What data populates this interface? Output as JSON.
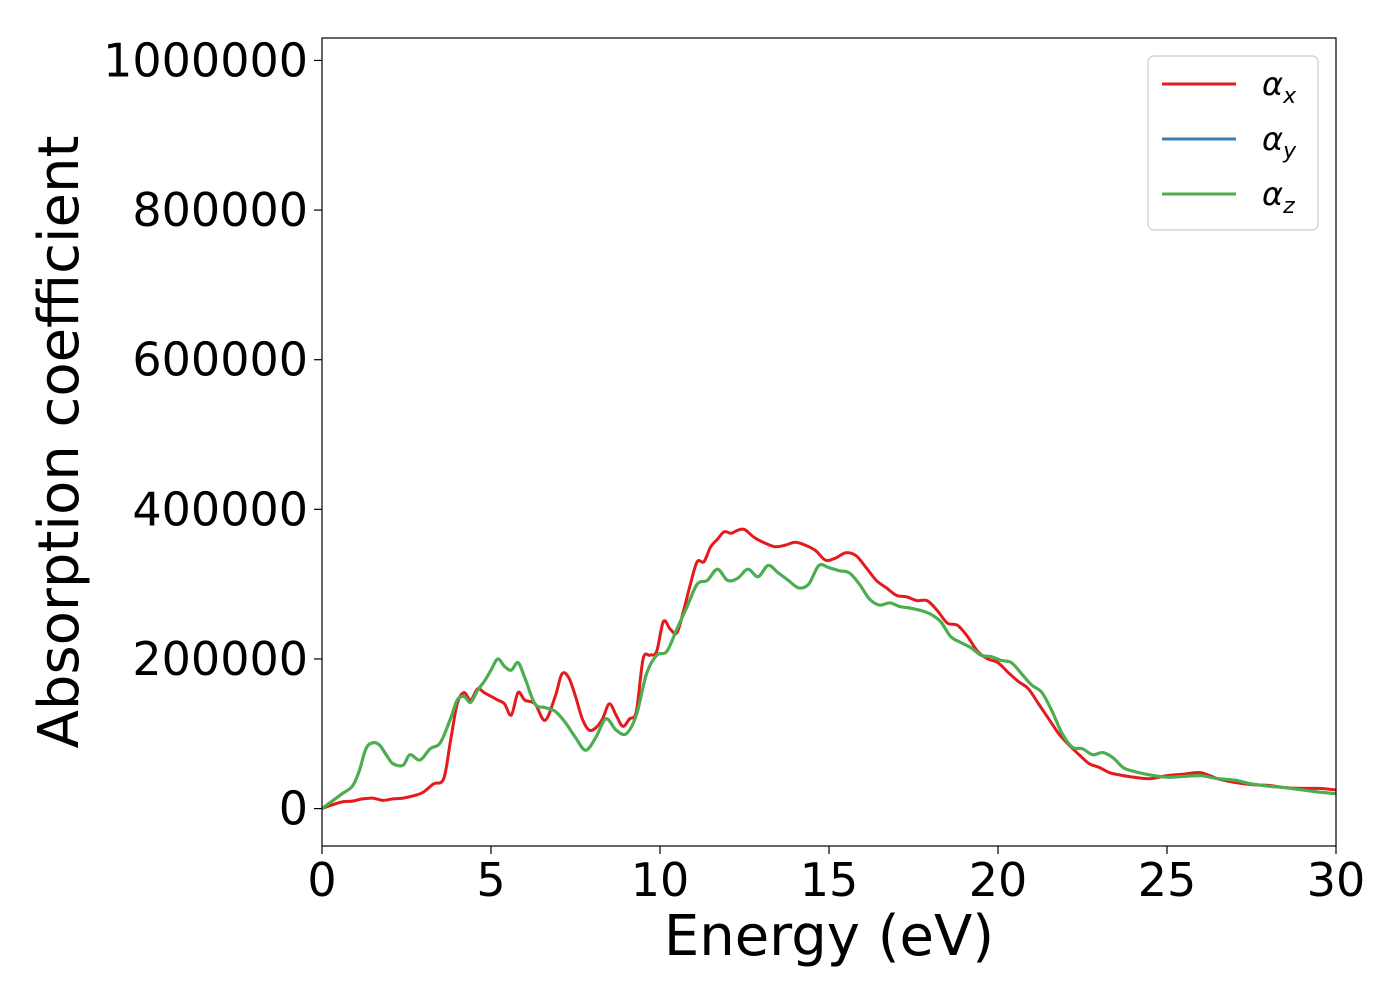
{
  "chart_data": {
    "type": "line",
    "title": "",
    "xlabel": "Energy (eV)",
    "ylabel": "Absorption coefficient",
    "xlim": [
      0,
      30
    ],
    "ylim": [
      -50000,
      1030000
    ],
    "xticks": [
      0,
      5,
      10,
      15,
      20,
      25,
      30
    ],
    "yticks": [
      0,
      200000,
      400000,
      600000,
      800000,
      1000000
    ],
    "grid": false,
    "legend_position": "top-right",
    "series": [
      {
        "name": "α",
        "subscript": "x",
        "color": "#e41a1c",
        "x": [
          0,
          0.3,
          0.6,
          0.9,
          1.2,
          1.5,
          1.8,
          2.1,
          2.4,
          2.7,
          3.0,
          3.3,
          3.6,
          3.8,
          4.0,
          4.2,
          4.4,
          4.6,
          4.8,
          5.0,
          5.2,
          5.4,
          5.6,
          5.8,
          6.0,
          6.3,
          6.6,
          6.9,
          7.1,
          7.3,
          7.5,
          7.7,
          7.9,
          8.1,
          8.3,
          8.5,
          8.7,
          8.9,
          9.1,
          9.3,
          9.5,
          9.7,
          9.9,
          10.1,
          10.3,
          10.5,
          10.7,
          10.9,
          11.1,
          11.3,
          11.5,
          11.7,
          11.9,
          12.1,
          12.3,
          12.5,
          12.8,
          13.1,
          13.4,
          13.7,
          14.0,
          14.3,
          14.6,
          14.9,
          15.2,
          15.5,
          15.8,
          16.1,
          16.4,
          16.7,
          17.0,
          17.3,
          17.6,
          17.9,
          18.2,
          18.5,
          18.8,
          19.1,
          19.4,
          19.7,
          20.0,
          20.3,
          20.6,
          20.9,
          21.2,
          21.5,
          21.8,
          22.1,
          22.4,
          22.7,
          23.0,
          23.3,
          23.6,
          24.0,
          24.5,
          25.0,
          25.5,
          26.0,
          26.5,
          27.0,
          27.5,
          28.0,
          28.5,
          29.0,
          29.5,
          30.0
        ],
        "y": [
          0,
          5000,
          9000,
          10000,
          13000,
          14000,
          11000,
          13000,
          14000,
          17000,
          22000,
          33000,
          40000,
          90000,
          140000,
          155000,
          145000,
          160000,
          155000,
          150000,
          145000,
          140000,
          125000,
          155000,
          145000,
          140000,
          118000,
          150000,
          180000,
          175000,
          150000,
          120000,
          105000,
          108000,
          120000,
          140000,
          125000,
          110000,
          120000,
          130000,
          200000,
          205000,
          210000,
          250000,
          240000,
          235000,
          265000,
          300000,
          330000,
          330000,
          350000,
          360000,
          370000,
          368000,
          372000,
          373000,
          362000,
          355000,
          350000,
          352000,
          356000,
          352000,
          345000,
          332000,
          335000,
          342000,
          338000,
          322000,
          305000,
          295000,
          285000,
          283000,
          278000,
          278000,
          265000,
          248000,
          245000,
          230000,
          210000,
          200000,
          195000,
          182000,
          170000,
          160000,
          140000,
          120000,
          100000,
          85000,
          72000,
          60000,
          55000,
          48000,
          45000,
          42000,
          40000,
          44000,
          46000,
          48000,
          40000,
          35000,
          32000,
          31000,
          28000,
          27000,
          27000,
          25000
        ]
      },
      {
        "name": "α",
        "subscript": "y",
        "color": "#377eb8",
        "x": [
          0,
          0.3,
          0.6,
          0.9,
          1.1,
          1.3,
          1.5,
          1.7,
          1.9,
          2.1,
          2.4,
          2.6,
          2.9,
          3.2,
          3.5,
          3.8,
          4.0,
          4.2,
          4.4,
          4.6,
          4.8,
          5.0,
          5.2,
          5.4,
          5.6,
          5.8,
          6.0,
          6.3,
          6.6,
          6.9,
          7.2,
          7.5,
          7.8,
          8.1,
          8.4,
          8.7,
          9.0,
          9.3,
          9.6,
          9.9,
          10.2,
          10.5,
          10.8,
          11.1,
          11.4,
          11.7,
          12.0,
          12.3,
          12.6,
          12.9,
          13.2,
          13.5,
          13.8,
          14.1,
          14.4,
          14.7,
          15.0,
          15.3,
          15.6,
          15.9,
          16.2,
          16.5,
          16.8,
          17.1,
          17.4,
          17.7,
          18.0,
          18.3,
          18.6,
          18.9,
          19.2,
          19.5,
          19.8,
          20.1,
          20.4,
          20.7,
          21.0,
          21.3,
          21.6,
          21.9,
          22.2,
          22.5,
          22.8,
          23.1,
          23.4,
          23.7,
          24.0,
          24.5,
          25.0,
          25.5,
          26.0,
          26.5,
          27.0,
          27.5,
          28.0,
          28.5,
          29.0,
          29.5,
          30.0
        ],
        "y": [
          0,
          10000,
          20000,
          30000,
          50000,
          80000,
          88000,
          85000,
          72000,
          60000,
          58000,
          72000,
          65000,
          80000,
          88000,
          120000,
          145000,
          150000,
          142000,
          158000,
          170000,
          185000,
          200000,
          190000,
          185000,
          195000,
          175000,
          140000,
          135000,
          130000,
          115000,
          95000,
          78000,
          95000,
          120000,
          105000,
          100000,
          125000,
          180000,
          205000,
          210000,
          240000,
          270000,
          300000,
          305000,
          320000,
          305000,
          308000,
          320000,
          310000,
          325000,
          315000,
          305000,
          295000,
          300000,
          325000,
          322000,
          318000,
          315000,
          300000,
          280000,
          272000,
          275000,
          270000,
          268000,
          265000,
          260000,
          250000,
          230000,
          222000,
          215000,
          205000,
          203000,
          198000,
          195000,
          180000,
          165000,
          155000,
          130000,
          100000,
          82000,
          80000,
          72000,
          75000,
          68000,
          55000,
          50000,
          45000,
          42000,
          43000,
          44000,
          40000,
          38000,
          33000,
          30000,
          28000,
          25000,
          22000,
          20000
        ]
      },
      {
        "name": "α",
        "subscript": "z",
        "color": "#4daf4a",
        "x": [
          0,
          0.3,
          0.6,
          0.9,
          1.1,
          1.3,
          1.5,
          1.7,
          1.9,
          2.1,
          2.4,
          2.6,
          2.9,
          3.2,
          3.5,
          3.8,
          4.0,
          4.2,
          4.4,
          4.6,
          4.8,
          5.0,
          5.2,
          5.4,
          5.6,
          5.8,
          6.0,
          6.3,
          6.6,
          6.9,
          7.2,
          7.5,
          7.8,
          8.1,
          8.4,
          8.7,
          9.0,
          9.3,
          9.6,
          9.9,
          10.2,
          10.5,
          10.8,
          11.1,
          11.4,
          11.7,
          12.0,
          12.3,
          12.6,
          12.9,
          13.2,
          13.5,
          13.8,
          14.1,
          14.4,
          14.7,
          15.0,
          15.3,
          15.6,
          15.9,
          16.2,
          16.5,
          16.8,
          17.1,
          17.4,
          17.7,
          18.0,
          18.3,
          18.6,
          18.9,
          19.2,
          19.5,
          19.8,
          20.1,
          20.4,
          20.7,
          21.0,
          21.3,
          21.6,
          21.9,
          22.2,
          22.5,
          22.8,
          23.1,
          23.4,
          23.7,
          24.0,
          24.5,
          25.0,
          25.5,
          26.0,
          26.5,
          27.0,
          27.5,
          28.0,
          28.5,
          29.0,
          29.5,
          30.0
        ],
        "y": [
          0,
          10000,
          20000,
          30000,
          50000,
          80000,
          88000,
          85000,
          72000,
          60000,
          58000,
          72000,
          65000,
          80000,
          88000,
          120000,
          145000,
          150000,
          142000,
          158000,
          170000,
          185000,
          200000,
          190000,
          185000,
          195000,
          175000,
          140000,
          135000,
          130000,
          115000,
          95000,
          78000,
          95000,
          120000,
          105000,
          100000,
          125000,
          180000,
          205000,
          210000,
          240000,
          270000,
          300000,
          305000,
          320000,
          305000,
          308000,
          320000,
          310000,
          325000,
          315000,
          305000,
          295000,
          300000,
          325000,
          322000,
          318000,
          315000,
          300000,
          280000,
          272000,
          275000,
          270000,
          268000,
          265000,
          260000,
          250000,
          230000,
          222000,
          215000,
          205000,
          203000,
          198000,
          195000,
          180000,
          165000,
          155000,
          130000,
          100000,
          82000,
          80000,
          72000,
          75000,
          68000,
          55000,
          50000,
          45000,
          42000,
          43000,
          44000,
          40000,
          38000,
          33000,
          30000,
          28000,
          25000,
          22000,
          20000
        ]
      }
    ]
  }
}
